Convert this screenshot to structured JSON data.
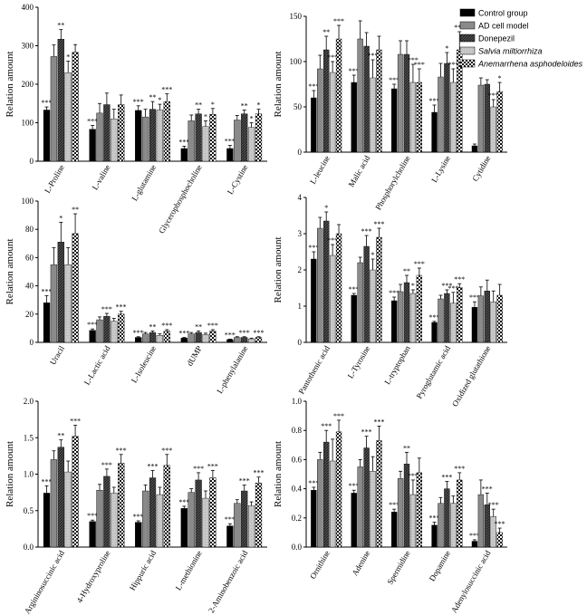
{
  "legend": {
    "items": [
      {
        "label": "Control group",
        "italic": false,
        "pattern": "black"
      },
      {
        "label": "AD cell model",
        "italic": false,
        "pattern": "gray"
      },
      {
        "label": "Donepezil",
        "italic": false,
        "pattern": "hatch"
      },
      {
        "label": "Salvia miltiorrhiza",
        "italic": true,
        "pattern": "lightgray"
      },
      {
        "label": "Anemarrhena asphodeloides",
        "italic": true,
        "pattern": "checker"
      }
    ]
  },
  "colors": {
    "control": "#000000",
    "ad_model": "#8a8a8a",
    "donepezil": "#555555",
    "salvia": "#bfbfbf",
    "anemarrhena": "#222222"
  },
  "chart_data": [
    {
      "type": "bar",
      "ylabel": "Relation amount",
      "ylim": [
        0,
        400
      ],
      "yticks": [
        "0",
        "100",
        "200",
        "300",
        "400"
      ],
      "categories": [
        "L-Proline",
        "L-valine",
        "L-glutamine",
        "Glycerophosphocholine",
        "L-Cystine"
      ],
      "series": [
        {
          "name": "Control group",
          "values": [
            133,
            83,
            132,
            33,
            33
          ],
          "errors": [
            8,
            10,
            12,
            6,
            8
          ],
          "sig": [
            "***",
            "***",
            "***",
            "***",
            "***"
          ]
        },
        {
          "name": "AD cell model",
          "values": [
            272,
            125,
            115,
            105,
            107
          ],
          "errors": [
            30,
            25,
            20,
            15,
            12
          ],
          "sig": [
            "",
            "",
            "",
            "",
            ""
          ]
        },
        {
          "name": "Donepezil",
          "values": [
            317,
            147,
            135,
            123,
            123
          ],
          "errors": [
            25,
            30,
            20,
            12,
            10
          ],
          "sig": [
            "**",
            "",
            "**",
            "**",
            "**"
          ]
        },
        {
          "name": "Salvia miltiorrhiza",
          "values": [
            230,
            110,
            133,
            90,
            88
          ],
          "errors": [
            30,
            25,
            15,
            15,
            12
          ],
          "sig": [
            "*",
            "",
            "*",
            "*",
            "*"
          ]
        },
        {
          "name": "Anemarrhena asphodeloides",
          "values": [
            283,
            147,
            155,
            122,
            123
          ],
          "errors": [
            20,
            25,
            20,
            15,
            12
          ],
          "sig": [
            "",
            "",
            "***",
            "*",
            "*"
          ]
        }
      ]
    },
    {
      "type": "bar",
      "ylabel": "Relation amount",
      "ylim": [
        0,
        150
      ],
      "yticks": [
        "0",
        "50",
        "100",
        "150"
      ],
      "categories": [
        "L-leucine",
        "Malic acid",
        "Phosphorylcholine",
        "L-Lysine",
        "Cytidine"
      ],
      "series": [
        {
          "name": "Control group",
          "values": [
            60,
            77,
            70,
            44,
            7
          ],
          "errors": [
            8,
            8,
            5,
            8,
            2
          ],
          "sig": [
            "***",
            "***",
            "***",
            "***",
            ""
          ]
        },
        {
          "name": "AD cell model",
          "values": [
            92,
            125,
            108,
            83,
            74
          ],
          "errors": [
            15,
            20,
            15,
            15,
            8
          ],
          "sig": [
            "",
            "",
            "",
            "",
            ""
          ]
        },
        {
          "name": "Donepezil",
          "values": [
            113,
            117,
            108,
            98,
            75
          ],
          "errors": [
            15,
            15,
            15,
            12,
            5
          ],
          "sig": [
            "**",
            "",
            "",
            "*",
            ""
          ]
        },
        {
          "name": "Salvia miltiorrhiza",
          "values": [
            88,
            82,
            77,
            77,
            50
          ],
          "errors": [
            12,
            20,
            20,
            15,
            8
          ],
          "sig": [
            "***",
            "***",
            "***",
            "***",
            "***"
          ]
        },
        {
          "name": "Anemarrhena asphodeloides",
          "values": [
            125,
            113,
            77,
            113,
            67
          ],
          "errors": [
            15,
            15,
            15,
            20,
            10
          ],
          "sig": [
            "***",
            "",
            "***",
            "***",
            "*"
          ]
        }
      ]
    },
    {
      "type": "bar",
      "ylabel": "Relation amount",
      "ylim": [
        0,
        100
      ],
      "yticks": [
        "0",
        "20",
        "40",
        "60",
        "80",
        "100"
      ],
      "categories": [
        "Uracil",
        "L-Lactic acid",
        "L-Isoleucine",
        "dUMP",
        "L-phenylalanine"
      ],
      "series": [
        {
          "name": "Control group",
          "values": [
            28,
            8.5,
            3.5,
            3,
            2
          ],
          "errors": [
            5,
            1,
            0.5,
            0.5,
            0.3
          ],
          "sig": [
            "***",
            "***",
            "***",
            "***",
            "***"
          ]
        },
        {
          "name": "AD cell model",
          "values": [
            55,
            16,
            6,
            6,
            3.5
          ],
          "errors": [
            12,
            2,
            1,
            1,
            0.5
          ],
          "sig": [
            "",
            "",
            "",
            "",
            ""
          ]
        },
        {
          "name": "Donepezil",
          "values": [
            71,
            18.5,
            7,
            7,
            3.5
          ],
          "errors": [
            14,
            2,
            1,
            1,
            0.5
          ],
          "sig": [
            "*",
            "***",
            "**",
            "**",
            "***"
          ]
        },
        {
          "name": "Salvia miltiorrhiza",
          "values": [
            55,
            15,
            5,
            5.5,
            2.5
          ],
          "errors": [
            12,
            2,
            1,
            1,
            0.5
          ],
          "sig": [
            "",
            "",
            "",
            "",
            ""
          ]
        },
        {
          "name": "Anemarrhena asphodeloides",
          "values": [
            77,
            20,
            8,
            8,
            3.5
          ],
          "errors": [
            14,
            2,
            1,
            1,
            0.5
          ],
          "sig": [
            "**",
            "***",
            "***",
            "***",
            "***"
          ]
        }
      ]
    },
    {
      "type": "bar",
      "ylabel": "Relation amount",
      "ylim": [
        0,
        4
      ],
      "yticks": [
        "0",
        "1",
        "2",
        "3",
        "4"
      ],
      "categories": [
        "Pantothenic acid",
        "L-Tyrosine",
        "L-tryptophan",
        "Pyroglutamic acid",
        "Oxidized glutathione"
      ],
      "series": [
        {
          "name": "Control group",
          "values": [
            2.3,
            1.3,
            1.15,
            0.55,
            0.97
          ],
          "errors": [
            0.2,
            0.05,
            0.1,
            0.03,
            0.15
          ],
          "sig": [
            "***",
            "***",
            "***",
            "***",
            "***"
          ]
        },
        {
          "name": "AD cell model",
          "values": [
            3.15,
            2.2,
            1.4,
            1.2,
            1.28
          ],
          "errors": [
            0.3,
            0.15,
            0.2,
            0.1,
            0.25
          ],
          "sig": [
            "",
            "",
            "",
            "",
            ""
          ]
        },
        {
          "name": "Donepezil",
          "values": [
            3.35,
            2.65,
            1.65,
            1.35,
            1.42
          ],
          "errors": [
            0.25,
            0.3,
            0.2,
            0.1,
            0.3
          ],
          "sig": [
            "*",
            "***",
            "**",
            "***",
            ""
          ]
        },
        {
          "name": "Salvia miltiorrhiza",
          "values": [
            2.4,
            2.0,
            1.35,
            1.08,
            1.12
          ],
          "errors": [
            0.3,
            0.3,
            0.1,
            0.3,
            0.3
          ],
          "sig": [
            "***",
            "*",
            "*",
            "***",
            ""
          ]
        },
        {
          "name": "Anemarrhena asphodeloides",
          "values": [
            3.0,
            2.9,
            1.85,
            1.52,
            1.3
          ],
          "errors": [
            0.25,
            0.25,
            0.2,
            0.1,
            0.3
          ],
          "sig": [
            "",
            "***",
            "***",
            "***",
            ""
          ]
        }
      ]
    },
    {
      "type": "bar",
      "ylabel": "Relation amount",
      "ylim": [
        0,
        2.0
      ],
      "yticks": [
        "0.0",
        "0.5",
        "1.0",
        "1.5",
        "2.0"
      ],
      "categories": [
        "Argininosuccinic acid",
        "4-Hydroxyproline",
        "Hippuric acid",
        "L-methionine",
        "2-Aminobenzoic acid"
      ],
      "series": [
        {
          "name": "Control group",
          "values": [
            0.74,
            0.35,
            0.34,
            0.53,
            0.29
          ],
          "errors": [
            0.1,
            0.02,
            0.02,
            0.03,
            0.03
          ],
          "sig": [
            "***",
            "***",
            "***",
            "***",
            "***"
          ]
        },
        {
          "name": "AD cell model",
          "values": [
            1.2,
            0.78,
            0.77,
            0.75,
            0.6
          ],
          "errors": [
            0.12,
            0.08,
            0.08,
            0.05,
            0.05
          ],
          "sig": [
            "",
            "",
            "",
            "",
            ""
          ]
        },
        {
          "name": "Donepezil",
          "values": [
            1.37,
            0.97,
            0.95,
            0.92,
            0.77
          ],
          "errors": [
            0.1,
            0.1,
            0.1,
            0.1,
            0.08
          ],
          "sig": [
            "**",
            "***",
            "***",
            "***",
            "***"
          ]
        },
        {
          "name": "Salvia miltiorrhiza",
          "values": [
            1.03,
            0.74,
            0.72,
            0.67,
            0.57
          ],
          "errors": [
            0.15,
            0.08,
            0.1,
            0.1,
            0.05
          ],
          "sig": [
            "",
            "",
            "",
            "",
            ""
          ]
        },
        {
          "name": "Anemarrhena asphodeloides",
          "values": [
            1.52,
            1.15,
            1.12,
            0.95,
            0.88
          ],
          "errors": [
            0.15,
            0.12,
            0.15,
            0.1,
            0.08
          ],
          "sig": [
            "***",
            "***",
            "***",
            "***",
            "***"
          ]
        }
      ]
    },
    {
      "type": "bar",
      "ylabel": "Relation amount",
      "ylim": [
        0,
        1.0
      ],
      "yticks": [
        "0.0",
        "0.2",
        "0.4",
        "0.6",
        "0.8",
        "1.0"
      ],
      "categories": [
        "Ornithine",
        "Adenine",
        "Spermidine",
        "Dopamine",
        "Adenylosuccinic acid"
      ],
      "series": [
        {
          "name": "Control group",
          "values": [
            0.39,
            0.37,
            0.24,
            0.15,
            0.04
          ],
          "errors": [
            0.02,
            0.02,
            0.02,
            0.02,
            0.01
          ],
          "sig": [
            "***",
            "***",
            "***",
            "***",
            "***"
          ]
        },
        {
          "name": "AD cell model",
          "values": [
            0.6,
            0.55,
            0.47,
            0.3,
            0.36
          ],
          "errors": [
            0.05,
            0.05,
            0.05,
            0.04,
            0.1
          ],
          "sig": [
            "",
            "",
            "",
            "",
            ""
          ]
        },
        {
          "name": "Donepezil",
          "values": [
            0.72,
            0.68,
            0.57,
            0.4,
            0.29
          ],
          "errors": [
            0.08,
            0.08,
            0.08,
            0.05,
            0.08
          ],
          "sig": [
            "***",
            "***",
            "**",
            "***",
            "***"
          ]
        },
        {
          "name": "Salvia miltiorrhiza",
          "values": [
            0.59,
            0.52,
            0.36,
            0.3,
            0.21
          ],
          "errors": [
            0.15,
            0.1,
            0.1,
            0.05,
            0.05
          ],
          "sig": [
            "",
            "",
            "***",
            "",
            "***"
          ]
        },
        {
          "name": "Anemarrhena asphodeloides",
          "values": [
            0.79,
            0.73,
            0.51,
            0.46,
            0.1
          ],
          "errors": [
            0.08,
            0.1,
            0.1,
            0.05,
            0.03
          ],
          "sig": [
            "***",
            "***",
            "",
            "***",
            "***"
          ]
        }
      ]
    }
  ]
}
